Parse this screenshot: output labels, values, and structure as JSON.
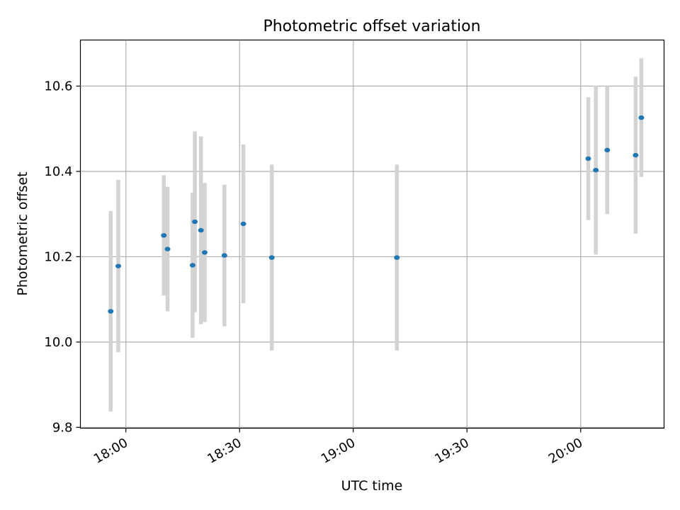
{
  "chart_data": {
    "type": "scatter",
    "title": "Photometric offset variation",
    "xlabel": "UTC time",
    "ylabel": "Photometric offset",
    "ylim": [
      9.798,
      10.708
    ],
    "xlim": [
      "17:48",
      "20:22"
    ],
    "x_ticks": [
      "18:00",
      "18:30",
      "19:00",
      "19:30",
      "20:00"
    ],
    "y_ticks": [
      "9.8",
      "10.0",
      "10.2",
      "10.4",
      "10.6"
    ],
    "grid": true,
    "colors": {
      "point": "#1f77b4",
      "errorbar": "#d3d3d3",
      "grid": "#b0b0b0",
      "axes": "#000000"
    },
    "points": [
      {
        "x": "17:56",
        "y": 10.072,
        "err": 0.235
      },
      {
        "x": "17:58",
        "y": 10.178,
        "err": 0.202
      },
      {
        "x": "18:10",
        "y": 10.25,
        "err": 0.141
      },
      {
        "x": "18:11",
        "y": 10.218,
        "err": 0.146
      },
      {
        "x": "18:17.6",
        "y": 10.18,
        "err": 0.17
      },
      {
        "x": "18:18.2",
        "y": 10.282,
        "err": 0.212
      },
      {
        "x": "18:19.8",
        "y": 10.262,
        "err": 0.22
      },
      {
        "x": "18:20.8",
        "y": 10.21,
        "err": 0.163
      },
      {
        "x": "18:26",
        "y": 10.203,
        "err": 0.166
      },
      {
        "x": "18:31",
        "y": 10.277,
        "err": 0.186
      },
      {
        "x": "18:38.5",
        "y": 10.198,
        "err": 0.218
      },
      {
        "x": "19:11.5",
        "y": 10.198,
        "err": 0.218
      },
      {
        "x": "20:02",
        "y": 10.43,
        "err": 0.144
      },
      {
        "x": "20:04",
        "y": 10.403,
        "err": 0.198
      },
      {
        "x": "20:07",
        "y": 10.45,
        "err": 0.15
      },
      {
        "x": "20:14.5",
        "y": 10.438,
        "err": 0.184
      },
      {
        "x": "20:16",
        "y": 10.526,
        "err": 0.139
      }
    ]
  }
}
